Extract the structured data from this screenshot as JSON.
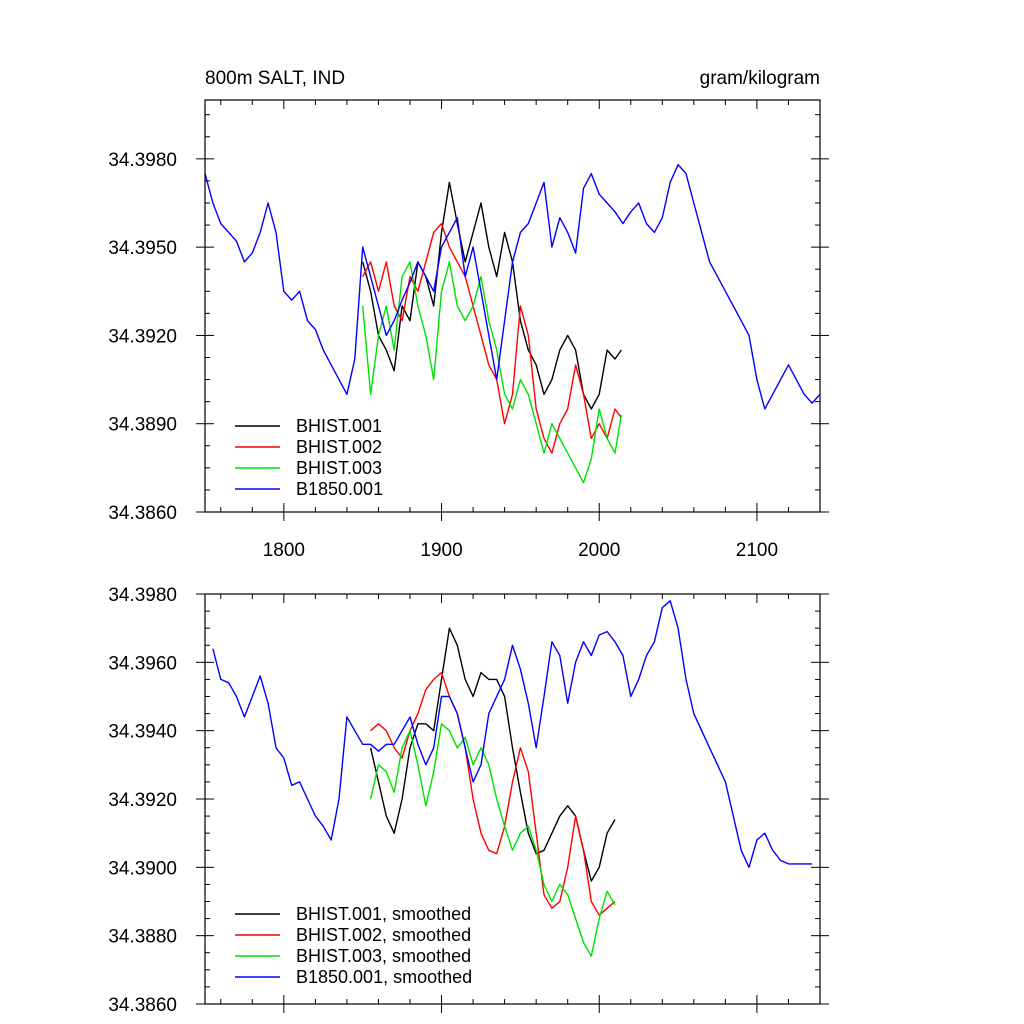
{
  "chart_data": [
    {
      "type": "line",
      "title_left": "800m SALT, IND",
      "title_right": "gram/kilogram",
      "xlim": [
        1750,
        2140
      ],
      "ylim": [
        34.386,
        34.4
      ],
      "xticks": [
        1800,
        1900,
        2000,
        2100
      ],
      "xtick_labels": [
        "1800",
        "1900",
        "2000",
        "2100"
      ],
      "yticks": [
        34.386,
        34.389,
        34.392,
        34.395,
        34.398
      ],
      "ytick_labels": [
        "34.3860",
        "34.3890",
        "34.3920",
        "34.3950",
        "34.3980"
      ],
      "legend_position": "bottom-left",
      "series": [
        {
          "name": "BHIST.001",
          "color": "#000000",
          "x": [
            1850,
            1855,
            1860,
            1865,
            1870,
            1875,
            1880,
            1885,
            1890,
            1895,
            1900,
            1905,
            1910,
            1915,
            1920,
            1925,
            1930,
            1935,
            1940,
            1945,
            1950,
            1955,
            1960,
            1965,
            1970,
            1975,
            1980,
            1985,
            1990,
            1995,
            2000,
            2005,
            2010,
            2014
          ],
          "y": [
            34.3945,
            34.3935,
            34.392,
            34.3915,
            34.3908,
            34.393,
            34.3925,
            34.3945,
            34.394,
            34.393,
            34.3955,
            34.3972,
            34.3958,
            34.3945,
            34.3955,
            34.3965,
            34.395,
            34.394,
            34.3955,
            34.3945,
            34.3925,
            34.3915,
            34.391,
            34.39,
            34.3905,
            34.3915,
            34.392,
            34.3915,
            34.39,
            34.3895,
            34.39,
            34.3915,
            34.3912,
            34.3915
          ]
        },
        {
          "name": "BHIST.002",
          "color": "#ff0000",
          "x": [
            1850,
            1855,
            1860,
            1865,
            1870,
            1875,
            1880,
            1885,
            1890,
            1895,
            1900,
            1905,
            1910,
            1915,
            1920,
            1925,
            1930,
            1935,
            1940,
            1945,
            1950,
            1955,
            1960,
            1965,
            1970,
            1975,
            1980,
            1985,
            1990,
            1995,
            2000,
            2005,
            2010,
            2014
          ],
          "y": [
            34.394,
            34.3945,
            34.3935,
            34.3945,
            34.393,
            34.3925,
            34.394,
            34.3935,
            34.3945,
            34.3955,
            34.3958,
            34.395,
            34.3945,
            34.394,
            34.393,
            34.392,
            34.391,
            34.3905,
            34.389,
            34.39,
            34.393,
            34.392,
            34.3895,
            34.3885,
            34.388,
            34.389,
            34.3895,
            34.391,
            34.39,
            34.3885,
            34.389,
            34.3885,
            34.3895,
            34.3892
          ]
        },
        {
          "name": "BHIST.003",
          "color": "#00e000",
          "x": [
            1850,
            1855,
            1860,
            1865,
            1870,
            1875,
            1880,
            1885,
            1890,
            1895,
            1900,
            1905,
            1910,
            1915,
            1920,
            1925,
            1930,
            1935,
            1940,
            1945,
            1950,
            1955,
            1960,
            1965,
            1970,
            1975,
            1980,
            1985,
            1990,
            1995,
            2000,
            2005,
            2010,
            2014
          ],
          "y": [
            34.393,
            34.39,
            34.392,
            34.393,
            34.3915,
            34.394,
            34.3945,
            34.393,
            34.392,
            34.3905,
            34.3935,
            34.3945,
            34.393,
            34.3925,
            34.393,
            34.394,
            34.3925,
            34.3915,
            34.39,
            34.3895,
            34.3905,
            34.39,
            34.389,
            34.388,
            34.389,
            34.3885,
            34.388,
            34.3875,
            34.387,
            34.3878,
            34.3895,
            34.3885,
            34.388,
            34.3893
          ]
        },
        {
          "name": "B1850.001",
          "color": "#0000ff",
          "x": [
            1750,
            1755,
            1760,
            1765,
            1770,
            1775,
            1780,
            1785,
            1790,
            1795,
            1800,
            1805,
            1810,
            1815,
            1820,
            1825,
            1830,
            1835,
            1840,
            1845,
            1850,
            1855,
            1860,
            1865,
            1870,
            1875,
            1880,
            1885,
            1890,
            1895,
            1900,
            1905,
            1910,
            1915,
            1920,
            1925,
            1930,
            1935,
            1940,
            1945,
            1950,
            1955,
            1960,
            1965,
            1970,
            1975,
            1980,
            1985,
            1990,
            1995,
            2000,
            2005,
            2010,
            2015,
            2020,
            2025,
            2030,
            2035,
            2040,
            2045,
            2050,
            2055,
            2060,
            2065,
            2070,
            2075,
            2080,
            2085,
            2090,
            2095,
            2100,
            2105,
            2110,
            2115,
            2120,
            2125,
            2130,
            2135,
            2140
          ],
          "y": [
            34.3975,
            34.3965,
            34.3958,
            34.3955,
            34.3952,
            34.3945,
            34.3948,
            34.3955,
            34.3965,
            34.3955,
            34.3935,
            34.3932,
            34.3935,
            34.3925,
            34.3922,
            34.3915,
            34.391,
            34.3905,
            34.39,
            34.3912,
            34.395,
            34.394,
            34.393,
            34.392,
            34.3925,
            34.3932,
            34.3938,
            34.3945,
            34.394,
            34.3935,
            34.395,
            34.3955,
            34.396,
            34.394,
            34.395,
            34.3935,
            34.392,
            34.3905,
            34.3925,
            34.3945,
            34.3955,
            34.3958,
            34.3965,
            34.3972,
            34.395,
            34.396,
            34.3955,
            34.3948,
            34.397,
            34.3975,
            34.3968,
            34.3965,
            34.3962,
            34.3958,
            34.3962,
            34.3965,
            34.3958,
            34.3955,
            34.396,
            34.3972,
            34.3978,
            34.3975,
            34.3965,
            34.3955,
            34.3945,
            34.394,
            34.3935,
            34.393,
            34.3925,
            34.392,
            34.3905,
            34.3895,
            34.39,
            34.3905,
            34.391,
            34.3905,
            34.39,
            34.3897,
            34.39
          ]
        }
      ]
    },
    {
      "type": "line",
      "xlim": [
        1750,
        2140
      ],
      "ylim": [
        34.386,
        34.398
      ],
      "xticks": [
        1800,
        1900,
        2000,
        2100
      ],
      "yticks": [
        34.386,
        34.388,
        34.39,
        34.392,
        34.394,
        34.396,
        34.398
      ],
      "ytick_labels": [
        "34.3860",
        "34.3880",
        "34.3900",
        "34.3920",
        "34.3940",
        "34.3960",
        "34.3980"
      ],
      "legend_position": "bottom-left",
      "series": [
        {
          "name": "BHIST.001, smoothed",
          "color": "#000000",
          "x": [
            1855,
            1860,
            1865,
            1870,
            1875,
            1880,
            1885,
            1890,
            1895,
            1900,
            1905,
            1910,
            1915,
            1920,
            1925,
            1930,
            1935,
            1940,
            1945,
            1950,
            1955,
            1960,
            1965,
            1970,
            1975,
            1980,
            1985,
            1990,
            1995,
            2000,
            2005,
            2010
          ],
          "y": [
            34.3935,
            34.3925,
            34.3915,
            34.391,
            34.392,
            34.3935,
            34.3942,
            34.3942,
            34.394,
            34.3955,
            34.397,
            34.3965,
            34.3955,
            34.395,
            34.3957,
            34.3955,
            34.3955,
            34.395,
            34.3935,
            34.3922,
            34.391,
            34.3904,
            34.3905,
            34.391,
            34.3915,
            34.3918,
            34.3915,
            34.3905,
            34.3896,
            34.39,
            34.391,
            34.3914
          ]
        },
        {
          "name": "BHIST.002, smoothed",
          "color": "#ff0000",
          "x": [
            1855,
            1860,
            1865,
            1870,
            1875,
            1880,
            1885,
            1890,
            1895,
            1900,
            1905,
            1910,
            1915,
            1920,
            1925,
            1930,
            1935,
            1940,
            1945,
            1950,
            1955,
            1960,
            1965,
            1970,
            1975,
            1980,
            1985,
            1990,
            1995,
            2000,
            2005,
            2010
          ],
          "y": [
            34.394,
            34.3942,
            34.394,
            34.3935,
            34.3932,
            34.394,
            34.3945,
            34.3952,
            34.3955,
            34.3957,
            34.395,
            34.3945,
            34.3935,
            34.392,
            34.391,
            34.3905,
            34.3904,
            34.3912,
            34.3925,
            34.3935,
            34.3928,
            34.391,
            34.3892,
            34.3888,
            34.389,
            34.39,
            34.3915,
            34.3905,
            34.389,
            34.3886,
            34.3888,
            34.389
          ]
        },
        {
          "name": "BHIST.003, smoothed",
          "color": "#00e000",
          "x": [
            1855,
            1860,
            1865,
            1870,
            1875,
            1880,
            1885,
            1890,
            1895,
            1900,
            1905,
            1910,
            1915,
            1920,
            1925,
            1930,
            1935,
            1940,
            1945,
            1950,
            1955,
            1960,
            1965,
            1970,
            1975,
            1980,
            1985,
            1990,
            1995,
            2000,
            2005,
            2010
          ],
          "y": [
            34.392,
            34.393,
            34.3928,
            34.3922,
            34.3935,
            34.394,
            34.393,
            34.3918,
            34.3928,
            34.3942,
            34.394,
            34.3935,
            34.3938,
            34.393,
            34.3935,
            34.393,
            34.392,
            34.3912,
            34.3905,
            34.391,
            34.3912,
            34.3905,
            34.3895,
            34.389,
            34.3895,
            34.3892,
            34.3885,
            34.3878,
            34.3874,
            34.3885,
            34.3893,
            34.3889
          ]
        },
        {
          "name": "B1850.001, smoothed",
          "color": "#0000ff",
          "x": [
            1755,
            1760,
            1765,
            1770,
            1775,
            1780,
            1785,
            1790,
            1795,
            1800,
            1805,
            1810,
            1815,
            1820,
            1825,
            1830,
            1835,
            1840,
            1845,
            1850,
            1855,
            1860,
            1865,
            1870,
            1875,
            1880,
            1885,
            1890,
            1895,
            1900,
            1905,
            1910,
            1915,
            1920,
            1925,
            1930,
            1935,
            1940,
            1945,
            1950,
            1955,
            1960,
            1965,
            1970,
            1975,
            1980,
            1985,
            1990,
            1995,
            2000,
            2005,
            2010,
            2015,
            2020,
            2025,
            2030,
            2035,
            2040,
            2045,
            2050,
            2055,
            2060,
            2065,
            2070,
            2075,
            2080,
            2085,
            2090,
            2095,
            2100,
            2105,
            2110,
            2115,
            2120,
            2125,
            2130,
            2135
          ],
          "y": [
            34.3964,
            34.3955,
            34.3954,
            34.395,
            34.3944,
            34.395,
            34.3956,
            34.3948,
            34.3935,
            34.3932,
            34.3924,
            34.3925,
            34.392,
            34.3915,
            34.3912,
            34.3908,
            34.392,
            34.3944,
            34.394,
            34.3936,
            34.3936,
            34.3934,
            34.3936,
            34.3936,
            34.394,
            34.3944,
            34.3936,
            34.393,
            34.3935,
            34.395,
            34.395,
            34.3945,
            34.3935,
            34.3925,
            34.393,
            34.3945,
            34.395,
            34.3955,
            34.3965,
            34.3958,
            34.3948,
            34.3935,
            34.395,
            34.3966,
            34.3962,
            34.3948,
            34.396,
            34.3966,
            34.3962,
            34.3968,
            34.3969,
            34.3966,
            34.3962,
            34.395,
            34.3955,
            34.3962,
            34.3966,
            34.3976,
            34.3978,
            34.397,
            34.3955,
            34.3945,
            34.394,
            34.3935,
            34.393,
            34.3925,
            34.3915,
            34.3905,
            34.39,
            34.3908,
            34.391,
            34.3905,
            34.3902,
            34.3901,
            34.3901,
            34.3901,
            34.3901
          ]
        }
      ]
    }
  ]
}
